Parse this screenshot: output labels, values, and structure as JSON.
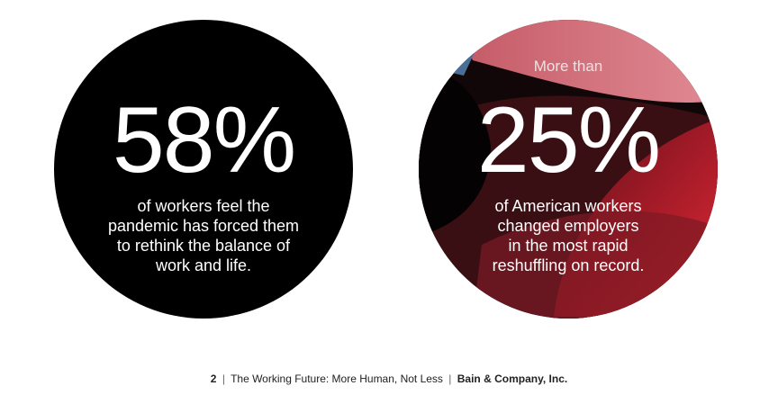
{
  "stats": {
    "left": {
      "number": "58%",
      "caption_lines": [
        "of workers feel the",
        "pandemic has forced them",
        "to rethink the balance of",
        "work and life."
      ]
    },
    "right": {
      "prefix": "More than",
      "number": "25%",
      "caption_lines": [
        "of American workers",
        "changed employers",
        "in the most rapid",
        "reshuffling on record."
      ]
    }
  },
  "footer": {
    "page_number": "2",
    "separator": "|",
    "title": "The Working Future: More Human, Not Less",
    "company": "Bain & Company, Inc."
  },
  "colors": {
    "left_circle": "#000000",
    "right_circle_base": "#1a0c0e",
    "right_circle_red": "#c9232f",
    "right_circle_pink": "#d6717c",
    "right_circle_blue": "#4b6e96",
    "text": "#ffffff"
  }
}
